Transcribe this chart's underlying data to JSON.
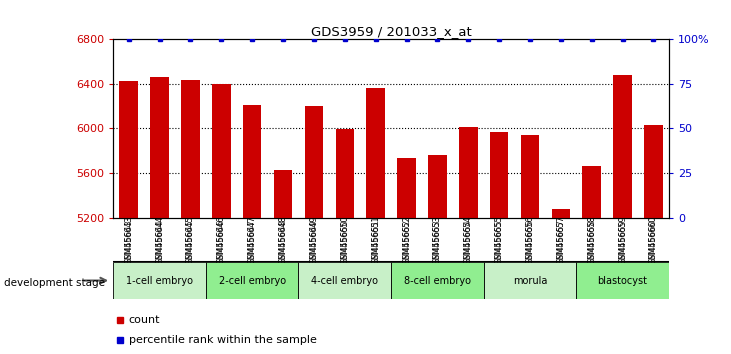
{
  "title": "GDS3959 / 201033_x_at",
  "samples": [
    "GSM456643",
    "GSM456644",
    "GSM456645",
    "GSM456646",
    "GSM456647",
    "GSM456648",
    "GSM456649",
    "GSM456650",
    "GSM456651",
    "GSM456652",
    "GSM456653",
    "GSM456654",
    "GSM456655",
    "GSM456656",
    "GSM456657",
    "GSM456658",
    "GSM456659",
    "GSM456660"
  ],
  "counts": [
    6420,
    6455,
    6430,
    6400,
    6210,
    5630,
    6200,
    5990,
    6360,
    5735,
    5760,
    6015,
    5970,
    5940,
    5280,
    5665,
    6480,
    6030
  ],
  "stages": [
    {
      "label": "1-cell embryo",
      "start": 0,
      "end": 2
    },
    {
      "label": "2-cell embryo",
      "start": 3,
      "end": 5
    },
    {
      "label": "4-cell embryo",
      "start": 6,
      "end": 8
    },
    {
      "label": "8-cell embryo",
      "start": 9,
      "end": 11
    },
    {
      "label": "morula",
      "start": 12,
      "end": 14
    },
    {
      "label": "blastocyst",
      "start": 15,
      "end": 17
    }
  ],
  "stage_colors": [
    "#c8f0c8",
    "#90EE90",
    "#c8f0c8",
    "#90EE90",
    "#c8f0c8",
    "#90EE90"
  ],
  "ylim_left": [
    5200,
    6800
  ],
  "ylim_right": [
    0,
    100
  ],
  "bar_color": "#CC0000",
  "dot_color": "#0000CC",
  "bar_width": 0.6,
  "yticks_left": [
    5200,
    5600,
    6000,
    6400,
    6800
  ],
  "yticks_right": [
    0,
    25,
    50,
    75,
    100
  ],
  "ylabel_left_color": "#CC0000",
  "ylabel_right_color": "#0000CC",
  "dev_stage_label": "development stage",
  "legend_count_label": "count",
  "legend_pct_label": "percentile rank within the sample"
}
